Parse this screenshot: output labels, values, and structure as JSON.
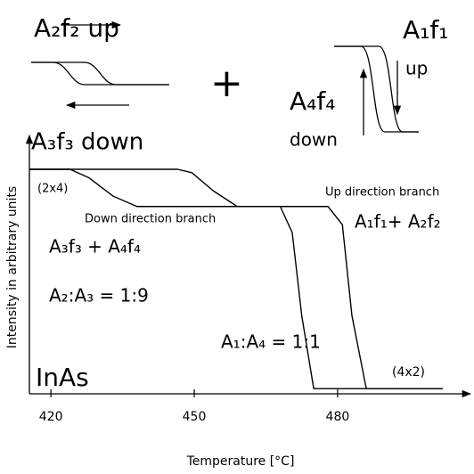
{
  "chart_data": {
    "type": "line",
    "xlabel": "Temperature [°C]",
    "ylabel": "Intensity in arbitrary units",
    "xlim": [
      415.5,
      507.8
    ],
    "xticks": [
      420,
      450,
      480
    ],
    "ylim": [
      0,
      1
    ],
    "yticks": [],
    "series": [
      {
        "name": "Up direction branch",
        "color": "#000000",
        "x": [
          415.5,
          446.5,
          449.5,
          454,
          459,
          478,
          481,
          483,
          486,
          502
        ],
        "values": [
          0.863,
          0.863,
          0.85,
          0.78,
          0.72,
          0.72,
          0.65,
          0.3,
          0.02,
          0.02
        ]
      },
      {
        "name": "Down direction branch",
        "color": "#000000",
        "x": [
          415.5,
          424,
          428,
          433,
          438,
          468,
          470.5,
          472.5,
          475,
          502
        ],
        "values": [
          0.863,
          0.863,
          0.83,
          0.76,
          0.72,
          0.72,
          0.62,
          0.3,
          0.02,
          0.02
        ]
      }
    ],
    "annotations": [
      "(2x4)",
      "A₃f₃ + A₄f₄",
      "A₂:A₃ = 1:9",
      "A₁:A₄ = 1:1",
      "InAs",
      "(4x2)",
      "A₁f₁+ A₂f₂",
      "A₂f₂ up",
      "A₃f₃ down",
      "A₁f₁",
      "up",
      "A₄f₄",
      "down",
      "+"
    ]
  }
}
